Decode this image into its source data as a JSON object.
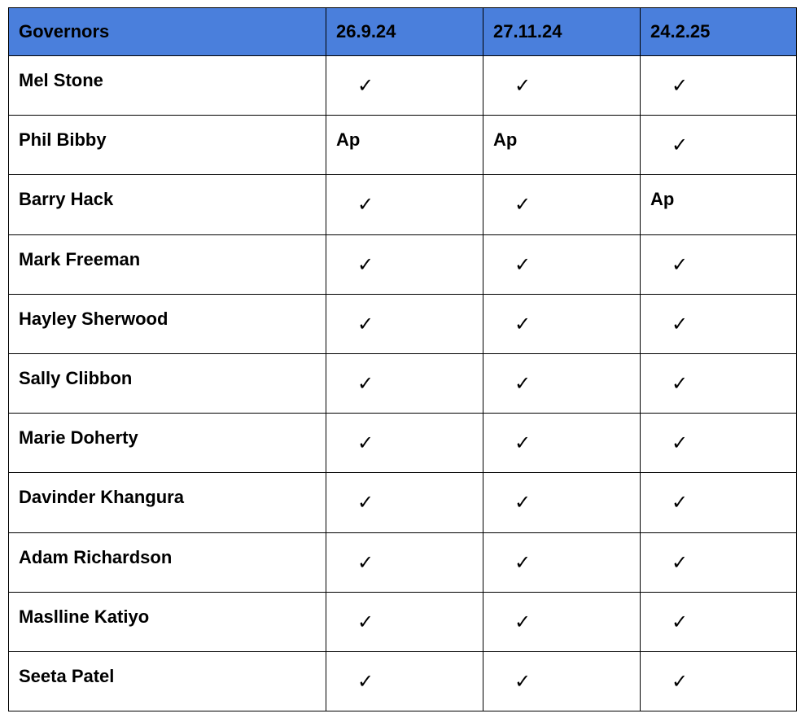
{
  "table": {
    "header": [
      "Governors",
      "26.9.24",
      "27.11.24",
      "24.2.25"
    ],
    "rows": [
      [
        "Mel Stone",
        "✓",
        "✓",
        "✓"
      ],
      [
        "Phil Bibby",
        "Ap",
        "Ap",
        "✓"
      ],
      [
        "Barry Hack",
        "✓",
        "✓",
        "Ap"
      ],
      [
        "Mark Freeman",
        "✓",
        "✓",
        "✓"
      ],
      [
        "Hayley Sherwood",
        "✓",
        "✓",
        "✓"
      ],
      [
        "Sally Clibbon",
        "✓",
        "✓",
        "✓"
      ],
      [
        "Marie Doherty",
        "✓",
        "✓",
        "✓"
      ],
      [
        "Davinder Khangura",
        "✓",
        "✓",
        "✓"
      ],
      [
        "Adam Richardson",
        "✓",
        "✓",
        "✓"
      ],
      [
        "Maslline Katiyo",
        "✓",
        "✓",
        "✓"
      ],
      [
        "Seeta Patel",
        "✓",
        "✓",
        "✓"
      ]
    ]
  }
}
